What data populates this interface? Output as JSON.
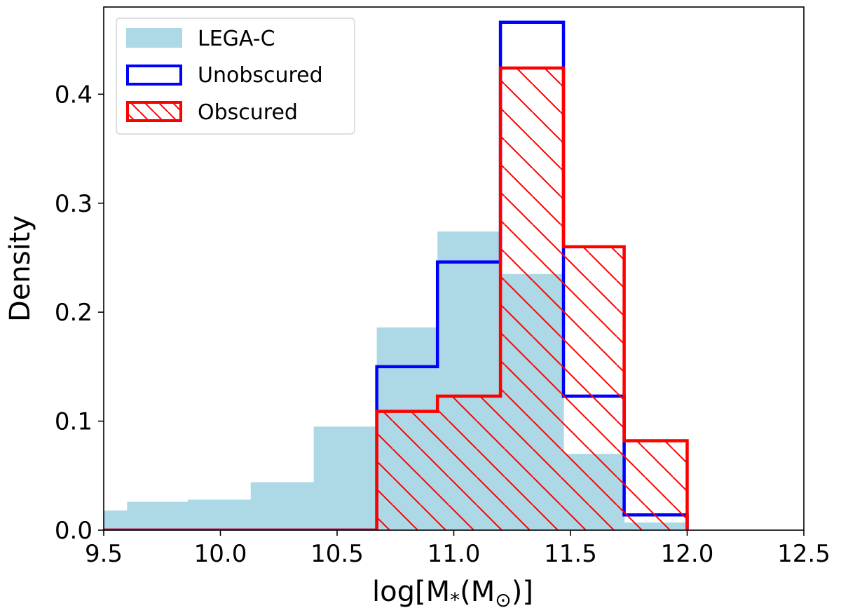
{
  "chart_data": {
    "type": "histogram",
    "title": "",
    "xlabel_parts": [
      "log[M",
      "*",
      "(M",
      "⊙",
      ")]"
    ],
    "ylabel": "Density",
    "xlim": [
      9.5,
      12.5
    ],
    "ylim": [
      0.0,
      0.48
    ],
    "xticks": [
      9.5,
      10.0,
      10.5,
      11.0,
      11.5,
      12.0,
      12.5
    ],
    "xtick_labels": [
      "9.5",
      "10.0",
      "10.5",
      "11.0",
      "11.5",
      "12.0",
      "12.5"
    ],
    "yticks": [
      0.0,
      0.1,
      0.2,
      0.3,
      0.4
    ],
    "ytick_labels": [
      "0.0",
      "0.1",
      "0.2",
      "0.3",
      "0.4"
    ],
    "grid": false,
    "legend_position": "top-left",
    "series": [
      {
        "name": "LEGA-C",
        "style": "filled",
        "color": "#add8e6",
        "bin_edges": [
          9.5,
          9.6,
          9.86,
          10.13,
          10.4,
          10.67,
          10.93,
          11.2,
          11.47,
          11.73,
          12.0
        ],
        "values": [
          0.018,
          0.026,
          0.028,
          0.044,
          0.095,
          0.186,
          0.274,
          0.235,
          0.07,
          0.007
        ]
      },
      {
        "name": "Unobscured",
        "style": "step",
        "color": "#0000ff",
        "bin_edges": [
          9.5,
          10.67,
          10.93,
          11.2,
          11.47,
          11.73,
          12.0
        ],
        "values": [
          0.0,
          0.15,
          0.246,
          0.466,
          0.123,
          0.014
        ]
      },
      {
        "name": "Obscured",
        "style": "step-hatched",
        "color": "#ff0000",
        "bin_edges": [
          9.5,
          10.67,
          10.93,
          11.2,
          11.47,
          11.73,
          12.0
        ],
        "values": [
          0.0,
          0.109,
          0.123,
          0.424,
          0.26,
          0.082
        ]
      }
    ]
  }
}
